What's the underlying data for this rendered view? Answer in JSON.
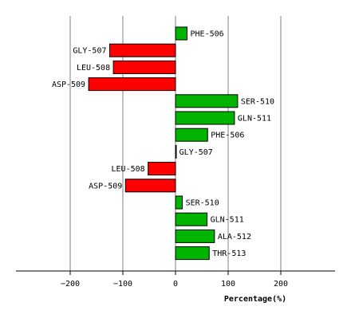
{
  "chart_data": {
    "type": "bar",
    "orientation": "horizontal",
    "categories": [
      "PHE-506",
      "GLY-507",
      "LEU-508",
      "ASP-509",
      "SER-510",
      "GLN-511",
      "PHE-506",
      "GLY-507",
      "LEU-508",
      "ASP-509",
      "SER-510",
      "GLN-511",
      "ALA-512",
      "THR-513"
    ],
    "values": [
      22,
      -125,
      -118,
      -165,
      118,
      112,
      61,
      1,
      -52,
      -95,
      13,
      60,
      74,
      64
    ],
    "title": "",
    "xlabel": "Percentage(%)",
    "ylabel": "",
    "xlim": [
      -300,
      300
    ],
    "xticks": [
      -200,
      -100,
      0,
      100,
      200
    ],
    "grid": true,
    "colors": {
      "positive": "#00b400",
      "negative": "#ff0000",
      "grid": "#808080",
      "axis": "#000000"
    }
  }
}
